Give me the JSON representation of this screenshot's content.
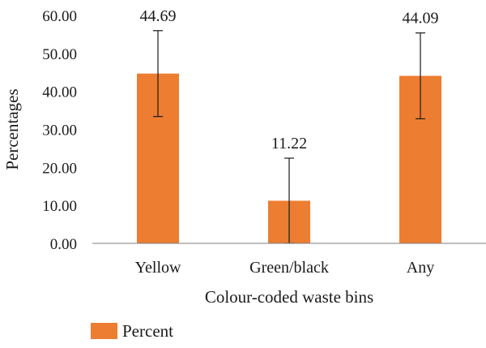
{
  "chart_data": {
    "type": "bar",
    "categories": [
      "Yellow",
      "Green/black",
      "Any"
    ],
    "series": [
      {
        "name": "Percent",
        "values": [
          44.69,
          11.22,
          44.09
        ],
        "error": [
          11.3,
          11.2,
          11.3
        ],
        "color": "#ED7D31"
      }
    ],
    "data_labels": [
      "44.69",
      "11.22",
      "44.09"
    ],
    "xlabel": "Colour-coded waste bins",
    "ylabel": "Percentages",
    "ylim": [
      0,
      60
    ],
    "yticks": [
      0,
      10,
      20,
      30,
      40,
      50,
      60
    ],
    "ytick_labels": [
      "0.00",
      "10.00",
      "20.00",
      "30.00",
      "40.00",
      "50.00",
      "60.00"
    ],
    "grid": false,
    "legend_position": "bottom-left"
  }
}
